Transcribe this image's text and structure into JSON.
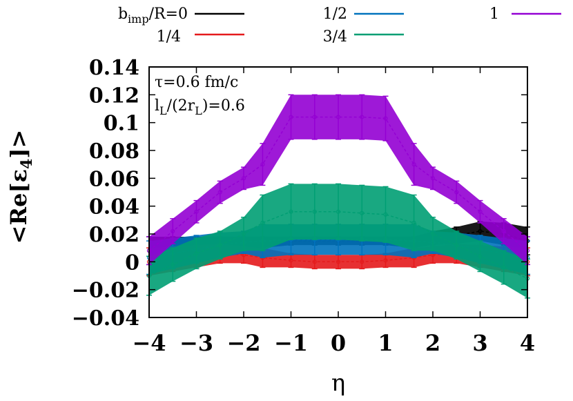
{
  "chart_data": {
    "type": "line",
    "title": "",
    "xlabel": "η",
    "ylabel": "<Re[ε4]>",
    "ylabel_parts": {
      "pre": "<Re[ε",
      "sub": "4",
      "post": "]>"
    },
    "xlim": [
      -4,
      4
    ],
    "ylim": [
      -0.04,
      0.14
    ],
    "x_ticks": [
      -4,
      -3,
      -2,
      -1,
      0,
      1,
      2,
      3,
      4
    ],
    "x_tick_labels": [
      "−4",
      "−3",
      "−2",
      "−1",
      "0",
      "1",
      "2",
      "3",
      "4"
    ],
    "y_ticks": [
      -0.04,
      -0.02,
      0,
      0.02,
      0.04,
      0.06,
      0.08,
      0.1,
      0.12,
      0.14
    ],
    "y_tick_labels": [
      "−0.04",
      "−0.02",
      "0",
      "0.02",
      "0.04",
      "0.06",
      "0.08",
      "0.1",
      "0.12",
      "0.14"
    ],
    "grid": false,
    "legend_position": "top",
    "annotations": [
      {
        "main": "τ=0.6 fm/c",
        "sub": ""
      },
      {
        "main": "l",
        "sub": "L",
        "mid": "/(2r",
        "sub2": "L",
        "tail": ")=0.6"
      }
    ],
    "x": [
      -4,
      -3.5,
      -3,
      -2.5,
      -2,
      -1.6,
      -1,
      -0.5,
      0,
      0.5,
      1,
      1.6,
      2,
      2.5,
      3,
      3.5,
      4
    ],
    "series": [
      {
        "name": "b_imp/R=0",
        "legend_parts": {
          "main": "b",
          "sub": "imp",
          "tail": "/R=0"
        },
        "color": "#000000",
        "y": [
          0.008,
          0.01,
          0.011,
          0.012,
          0.013,
          0.014,
          0.015,
          0.015,
          0.015,
          0.015,
          0.015,
          0.014,
          0.017,
          0.019,
          0.022,
          0.02,
          0.015
        ],
        "err": [
          0.01,
          0.008,
          0.007,
          0.006,
          0.005,
          0.004,
          0.003,
          0.003,
          0.003,
          0.003,
          0.003,
          0.004,
          0.005,
          0.006,
          0.007,
          0.008,
          0.01
        ]
      },
      {
        "name": "1/4",
        "color": "#e41a1c",
        "y": [
          0.0,
          0.002,
          0.004,
          0.006,
          0.005,
          0.003,
          0.001,
          0.0,
          0.0,
          0.0,
          0.001,
          0.003,
          0.005,
          0.006,
          0.004,
          0.002,
          0.0
        ],
        "err": [
          0.01,
          0.009,
          0.008,
          0.007,
          0.006,
          0.007,
          0.005,
          0.005,
          0.005,
          0.005,
          0.005,
          0.007,
          0.006,
          0.007,
          0.008,
          0.009,
          0.01
        ]
      },
      {
        "name": "1/2",
        "color": "#0072bd",
        "y": [
          0.003,
          0.006,
          0.009,
          0.012,
          0.014,
          0.015,
          0.016,
          0.016,
          0.016,
          0.016,
          0.016,
          0.015,
          0.014,
          0.012,
          0.009,
          0.006,
          0.003
        ],
        "err": [
          0.012,
          0.011,
          0.01,
          0.009,
          0.008,
          0.012,
          0.011,
          0.011,
          0.011,
          0.011,
          0.011,
          0.012,
          0.008,
          0.009,
          0.01,
          0.011,
          0.012
        ]
      },
      {
        "name": "3/4",
        "color": "#009e73",
        "y": [
          -0.01,
          -0.002,
          0.006,
          0.012,
          0.02,
          0.028,
          0.036,
          0.036,
          0.036,
          0.035,
          0.034,
          0.028,
          0.02,
          0.012,
          0.004,
          -0.004,
          -0.012
        ],
        "err": [
          0.014,
          0.012,
          0.011,
          0.01,
          0.012,
          0.02,
          0.02,
          0.02,
          0.02,
          0.02,
          0.02,
          0.02,
          0.012,
          0.01,
          0.011,
          0.012,
          0.014
        ]
      },
      {
        "name": "1",
        "color": "#9400d3",
        "y": [
          0.008,
          0.022,
          0.036,
          0.05,
          0.06,
          0.07,
          0.104,
          0.104,
          0.104,
          0.104,
          0.103,
          0.07,
          0.06,
          0.05,
          0.036,
          0.022,
          0.008
        ],
        "err": [
          0.01,
          0.009,
          0.008,
          0.008,
          0.008,
          0.015,
          0.016,
          0.016,
          0.016,
          0.016,
          0.016,
          0.015,
          0.008,
          0.008,
          0.008,
          0.009,
          0.01
        ]
      }
    ]
  }
}
